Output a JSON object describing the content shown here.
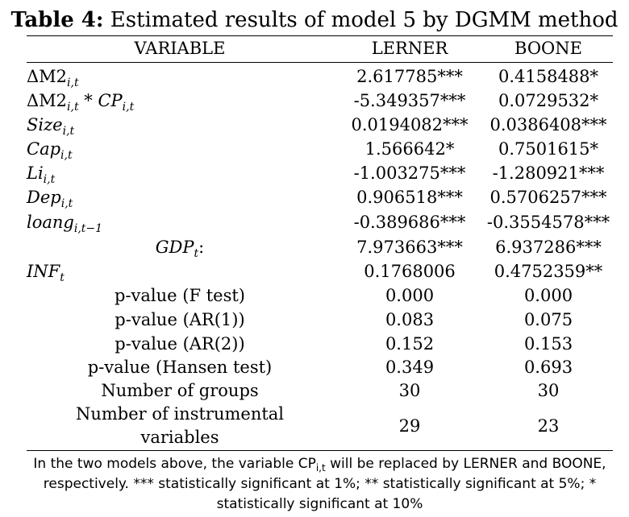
{
  "table": {
    "title_bold": "Table 4:",
    "title_rest": " Estimated results of model 5 by DGMM method",
    "headers": {
      "variable": "VARIABLE",
      "col1": "LERNER",
      "col2": "BOONE"
    },
    "variable_rows": [
      {
        "symbol": "ΔM2",
        "subscript": "i,t",
        "suffix": "",
        "lerner": "2.617785***",
        "boone": "0.4158488*"
      },
      {
        "symbol": "ΔM2",
        "subscript": "i,t",
        "suffix": " * CP",
        "suffix_sub": "i,t",
        "lerner": "-5.349357***",
        "boone": "0.0729532*"
      },
      {
        "symbol": "Size",
        "subscript": "i,t",
        "lerner": "0.0194082***",
        "boone": "0.0386408***"
      },
      {
        "symbol": "Cap",
        "subscript": "i,t",
        "lerner": "1.566642*",
        "boone": "0.7501615*"
      },
      {
        "symbol": "Li",
        "subscript": "i,t",
        "lerner": "-1.003275***",
        "boone": "-1.280921***"
      },
      {
        "symbol": "Dep",
        "subscript": "i,t",
        "lerner": "0.906518***",
        "boone": "0.5706257***"
      },
      {
        "symbol": "loang",
        "subscript": "i,t−1",
        "lerner": "-0.389686***",
        "boone": "-0.3554578***"
      },
      {
        "symbol": "GDP",
        "subscript": "t",
        "suffix": ":",
        "lerner": "7.973663***",
        "boone": "6.937286***"
      },
      {
        "symbol": "INF",
        "subscript": "t",
        "lerner": "0.1768006",
        "boone": "0.4752359**"
      }
    ],
    "stat_rows": [
      {
        "label": "p-value (F test)",
        "lerner": "0.000",
        "boone": "0.000"
      },
      {
        "label": "p-value (AR(1))",
        "lerner": "0.083",
        "boone": "0.075"
      },
      {
        "label": "p-value (AR(2))",
        "lerner": "0.152",
        "boone": "0.153"
      },
      {
        "label": "p-value (Hansen test)",
        "lerner": "0.349",
        "boone": "0.693"
      },
      {
        "label": "Number of groups",
        "lerner": "30",
        "boone": "30"
      }
    ],
    "instr_row": {
      "label_line1": "Number of instrumental",
      "label_line2": "variables",
      "lerner": "29",
      "boone": "23"
    },
    "note": {
      "part1": "In the two models above, the variable CP",
      "sub": "i,t",
      "part2": " will be replaced by LERNER and BOONE, respectively. *** statistically significant at 1%; ** statistically significant at 5%; * statistically significant at 10%"
    }
  }
}
